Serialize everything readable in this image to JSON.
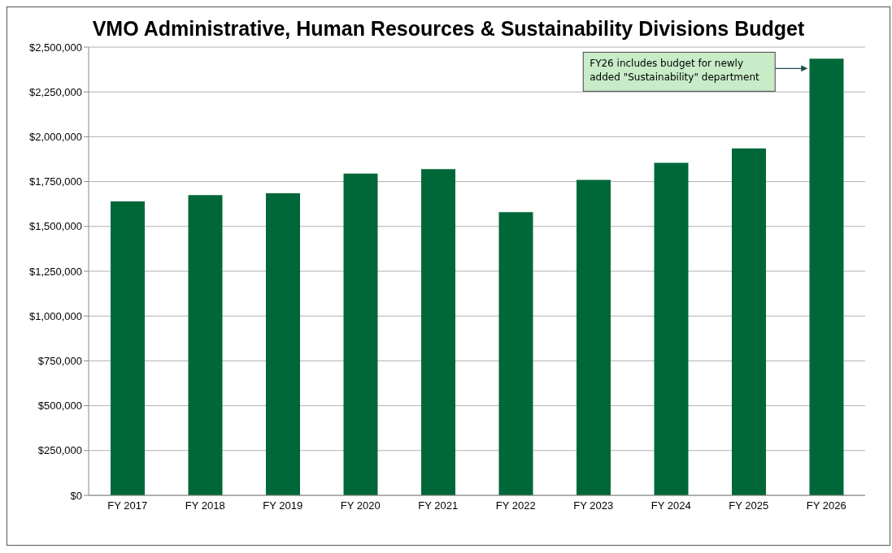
{
  "chart_data": {
    "type": "bar",
    "title": "VMO Administrative, Human Resources & Sustainability Divisions Budget",
    "categories": [
      "FY 2017",
      "FY 2018",
      "FY 2019",
      "FY 2020",
      "FY 2021",
      "FY 2022",
      "FY 2023",
      "FY 2024",
      "FY 2025",
      "FY 2026"
    ],
    "values": [
      1640000,
      1675000,
      1685000,
      1795000,
      1820000,
      1580000,
      1760000,
      1855000,
      1935000,
      2435000
    ],
    "color": "#006838",
    "ylim": [
      0,
      2500000
    ],
    "yticks": [
      {
        "value": 0,
        "label": "$0"
      },
      {
        "value": 250000,
        "label": "$250,000"
      },
      {
        "value": 500000,
        "label": "$500,000"
      },
      {
        "value": 750000,
        "label": "$750,000"
      },
      {
        "value": 1000000,
        "label": "$1,000,000"
      },
      {
        "value": 1250000,
        "label": "$1,250,000"
      },
      {
        "value": 1500000,
        "label": "$1,500,000"
      },
      {
        "value": 1750000,
        "label": "$1,750,000"
      },
      {
        "value": 2000000,
        "label": "$2,000,000"
      },
      {
        "value": 2250000,
        "label": "$2,250,000"
      },
      {
        "value": 2500000,
        "label": "$2,500,000"
      }
    ],
    "grid": "y",
    "annotations": [
      "FY26 includes budget for newly added \"Sustainability\" department"
    ]
  }
}
